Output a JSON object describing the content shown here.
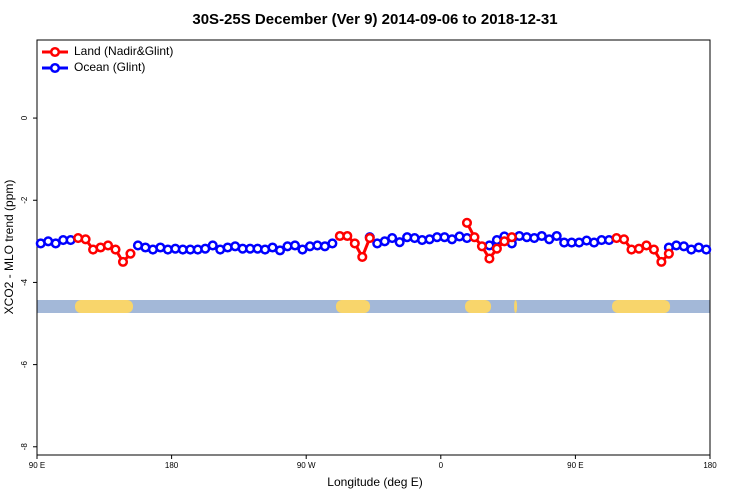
{
  "chart_data": {
    "type": "line",
    "title": "30S-25S December (Ver 9)   2014-09-06 to 2018-12-31",
    "x_label": "Longitude (deg E)",
    "y_label": "XCO2 - MLO trend (ppm)",
    "xlim": [
      90,
      540
    ],
    "xticks": [
      {
        "value": 90,
        "label": "90 E"
      },
      180,
      {
        "value": 270,
        "label": "90 W"
      },
      {
        "value": 360,
        "label": "0"
      },
      {
        "value": 450,
        "label": "90 E"
      },
      {
        "value": 540,
        "label": "180"
      }
    ],
    "ylim": [
      -8.2,
      1.9
    ],
    "yticks": [
      0,
      -2,
      -4,
      -6,
      -8
    ],
    "legend": "top-left",
    "land_segments": [
      [
        115.4,
        154.2
      ],
      [
        289.9,
        312.7
      ],
      [
        376.2,
        393.6
      ],
      [
        409,
        411
      ],
      [
        474.5,
        513.3
      ]
    ],
    "land_color": "#f8d56b",
    "ocean_color": "#a3b8d8",
    "x": [
      92.5,
      97.5,
      102.5,
      107.5,
      112.5,
      117.5,
      122.5,
      127.5,
      132.5,
      137.5,
      142.5,
      147.5,
      152.5,
      157.5,
      162.5,
      167.5,
      172.5,
      177.5,
      182.5,
      187.5,
      192.5,
      197.5,
      202.5,
      207.5,
      212.5,
      217.5,
      222.5,
      227.5,
      232.5,
      237.5,
      242.5,
      247.5,
      252.5,
      257.5,
      262.5,
      267.5,
      272.5,
      277.5,
      282.5,
      287.5,
      292.5,
      297.5,
      302.5,
      307.5,
      312.5,
      317.5,
      322.5,
      327.5,
      332.5,
      337.5,
      342.5,
      347.5,
      352.5,
      357.5,
      362.5,
      367.5,
      372.5,
      377.5,
      382.5,
      387.5,
      392.5,
      397.5,
      402.5,
      407.5,
      412.5,
      417.5,
      422.5,
      427.5,
      432.5,
      437.5,
      442.5,
      447.5,
      452.5,
      457.5,
      462.5,
      467.5,
      472.5,
      477.5,
      482.5,
      487.5,
      492.5,
      497.5,
      502.5,
      507.5,
      512.5,
      517.5,
      522.5,
      527.5,
      532.5,
      537.5
    ],
    "series": [
      {
        "name": "Ocean (Glint)",
        "color": "#0000ff",
        "values": [
          -3.05,
          -3.0,
          -3.05,
          -2.97,
          -2.97,
          null,
          null,
          null,
          null,
          null,
          null,
          null,
          null,
          -3.1,
          -3.15,
          -3.2,
          -3.15,
          -3.2,
          -3.18,
          -3.2,
          -3.2,
          -3.2,
          -3.18,
          -3.1,
          -3.2,
          -3.15,
          -3.12,
          -3.18,
          -3.18,
          -3.18,
          -3.2,
          -3.15,
          -3.22,
          -3.12,
          -3.1,
          -3.2,
          -3.12,
          -3.1,
          -3.12,
          -3.05,
          null,
          null,
          null,
          null,
          -2.9,
          -3.05,
          -3.0,
          -2.92,
          -3.02,
          -2.9,
          -2.92,
          -2.97,
          -2.95,
          -2.9,
          -2.9,
          -2.95,
          -2.88,
          -2.92,
          null,
          null,
          -3.1,
          -2.97,
          -2.88,
          -3.05,
          -2.87,
          -2.9,
          -2.92,
          -2.87,
          -2.95,
          -2.87,
          -3.03,
          -3.03,
          -3.03,
          -2.98,
          -3.03,
          -2.97,
          -2.97,
          null,
          null,
          null,
          null,
          null,
          null,
          null,
          -3.15,
          -3.1,
          -3.12,
          -3.2,
          -3.15,
          -3.2
        ]
      },
      {
        "name": "Land (Nadir&Glint)",
        "color": "#ff0000",
        "values": [
          null,
          null,
          null,
          null,
          null,
          -2.92,
          -2.95,
          -3.2,
          -3.15,
          -3.1,
          -3.2,
          -3.5,
          -3.3,
          null,
          null,
          null,
          null,
          null,
          null,
          null,
          null,
          null,
          null,
          null,
          null,
          null,
          null,
          null,
          null,
          null,
          null,
          null,
          null,
          null,
          null,
          null,
          null,
          null,
          null,
          null,
          -2.87,
          -2.87,
          -3.05,
          -3.38,
          -2.92,
          null,
          null,
          null,
          null,
          null,
          null,
          null,
          null,
          null,
          null,
          null,
          null,
          -2.55,
          -2.9,
          -3.12,
          -3.42,
          -3.18,
          -3.0,
          -2.9,
          null,
          null,
          null,
          null,
          null,
          null,
          null,
          null,
          null,
          null,
          null,
          null,
          null,
          -2.92,
          -2.95,
          -3.2,
          -3.18,
          -3.1,
          -3.2,
          -3.5,
          -3.3,
          null,
          null,
          null,
          null,
          null
        ]
      }
    ]
  }
}
